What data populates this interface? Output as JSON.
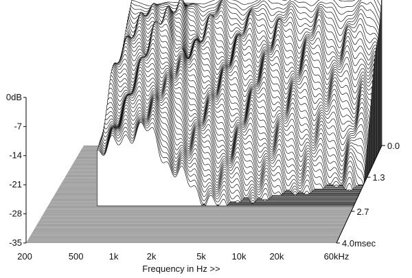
{
  "chart_data": {
    "type": "waterfall",
    "title": "",
    "xlabel": "Frequency in Hz >>",
    "ylabel": "",
    "zlabel": "",
    "x_scale": "log",
    "xlim": [
      200,
      60000
    ],
    "ylim": [
      -35,
      0
    ],
    "time_range_ms": [
      0.0,
      4.0
    ],
    "x_ticks": [
      {
        "value": 200,
        "label": "200"
      },
      {
        "value": 500,
        "label": "500"
      },
      {
        "value": 1000,
        "label": "1k"
      },
      {
        "value": 2000,
        "label": "2k"
      },
      {
        "value": 5000,
        "label": "5k"
      },
      {
        "value": 10000,
        "label": "10k"
      },
      {
        "value": 20000,
        "label": "20k"
      },
      {
        "value": 60000,
        "label": "60kHz"
      }
    ],
    "y_ticks": [
      {
        "value": 0,
        "label": "0dB"
      },
      {
        "value": -7,
        "label": "-7"
      },
      {
        "value": -14,
        "label": "-14"
      },
      {
        "value": -21,
        "label": "-21"
      },
      {
        "value": -28,
        "label": "-28"
      },
      {
        "value": -35,
        "label": "-35"
      }
    ],
    "time_ticks": [
      {
        "value": 0.0,
        "label": "0.0"
      },
      {
        "value": 1.3,
        "label": "1.3"
      },
      {
        "value": 2.7,
        "label": "2.7"
      },
      {
        "value": 4.0,
        "label": "4.0msec"
      }
    ],
    "front_response_db": [
      {
        "hz": 500,
        "db": 0
      },
      {
        "hz": 700,
        "db": -1.5
      },
      {
        "hz": 1000,
        "db": -0.5
      },
      {
        "hz": 2000,
        "db": -1
      },
      {
        "hz": 3000,
        "db": 1
      },
      {
        "hz": 5000,
        "db": 0
      },
      {
        "hz": 7000,
        "db": 2
      },
      {
        "hz": 10000,
        "db": 1
      },
      {
        "hz": 20000,
        "db": 2
      },
      {
        "hz": 30000,
        "db": 1
      },
      {
        "hz": 40000,
        "db": 1.5
      },
      {
        "hz": 50000,
        "db": 5
      },
      {
        "hz": 60000,
        "db": 2
      }
    ],
    "grid": false,
    "legend": "none"
  }
}
